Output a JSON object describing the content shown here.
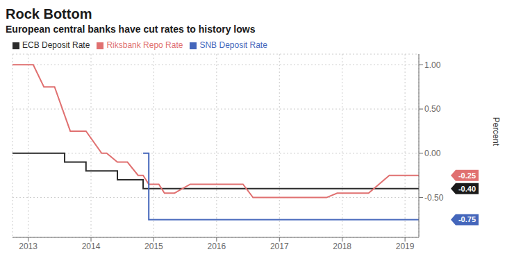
{
  "chart_data": {
    "type": "line",
    "title": "Rock Bottom",
    "subtitle": "European central banks have cut rates to history lows",
    "y_label": "Percent",
    "xlim": [
      2012.75,
      2019.22
    ],
    "ylim": [
      -0.95,
      1.12
    ],
    "xticks": [
      2013,
      2014,
      2015,
      2016,
      2017,
      2018,
      2019
    ],
    "yticks": [
      {
        "value": -0.5,
        "label": "-0.50"
      },
      {
        "value": 0.0,
        "label": "0.00"
      },
      {
        "value": 0.5,
        "label": "0.50"
      },
      {
        "value": 1.0,
        "label": "1.00"
      }
    ],
    "grid": true,
    "legend": "top",
    "series": [
      {
        "name": "ECB Deposit Rate",
        "color": "#2b2b2b",
        "x": [
          2012.75,
          2013.58,
          2013.58,
          2013.92,
          2013.92,
          2014.42,
          2014.42,
          2014.83,
          2014.83,
          2019.22
        ],
        "values": [
          0.0,
          0.0,
          -0.1,
          -0.1,
          -0.2,
          -0.2,
          -0.3,
          -0.3,
          -0.4,
          -0.4
        ]
      },
      {
        "name": "Riksbank Repo Rate",
        "color": "#e07070",
        "x": [
          2012.75,
          2013.08,
          2013.25,
          2013.42,
          2013.67,
          2013.92,
          2014.17,
          2014.25,
          2014.42,
          2014.58,
          2014.75,
          2014.83,
          2014.92,
          2015.08,
          2015.17,
          2015.33,
          2015.58,
          2016.42,
          2016.58,
          2017.75,
          2017.92,
          2018.42,
          2018.75,
          2019.22
        ],
        "values": [
          1.0,
          1.0,
          0.75,
          0.75,
          0.25,
          0.25,
          0.0,
          0.0,
          -0.1,
          -0.1,
          -0.25,
          -0.25,
          -0.35,
          -0.35,
          -0.45,
          -0.45,
          -0.35,
          -0.35,
          -0.5,
          -0.5,
          -0.45,
          -0.45,
          -0.25,
          -0.25
        ]
      },
      {
        "name": "SNB Deposit Rate",
        "color": "#4466bb",
        "x": [
          2014.83,
          2014.92,
          2014.92,
          2019.22
        ],
        "values": [
          0.0,
          0.0,
          -0.75,
          -0.75
        ]
      }
    ],
    "annotations": [
      {
        "text": "-0.25",
        "y": -0.25,
        "color": "#e07070"
      },
      {
        "text": "-0.40",
        "y": -0.4,
        "color": "#1a1a1a"
      },
      {
        "text": "-0.75",
        "y": -0.75,
        "color": "#4466bb"
      }
    ]
  }
}
